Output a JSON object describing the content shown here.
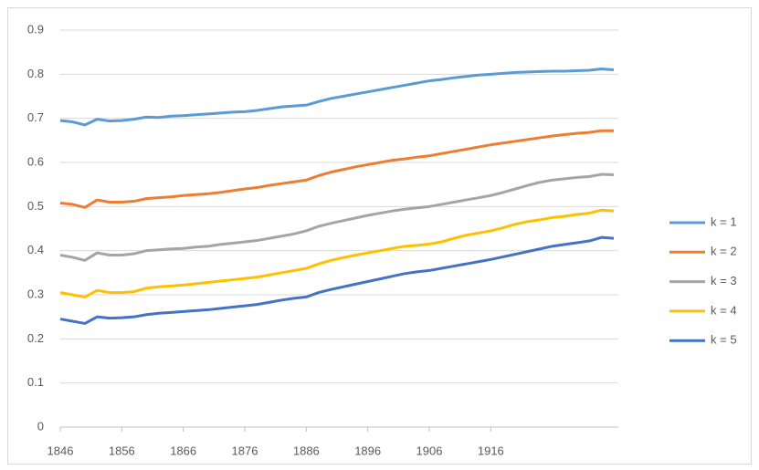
{
  "chart_data": {
    "type": "line",
    "x": [
      1846,
      1848,
      1850,
      1852,
      1854,
      1856,
      1858,
      1860,
      1862,
      1864,
      1866,
      1868,
      1870,
      1872,
      1874,
      1876,
      1878,
      1880,
      1882,
      1884,
      1886,
      1888,
      1890,
      1892,
      1894,
      1896,
      1898,
      1900,
      1902,
      1904,
      1906,
      1908,
      1910,
      1912,
      1914,
      1916,
      1918,
      1920,
      1922,
      1924,
      1926,
      1928,
      1930,
      1932,
      1934,
      1936
    ],
    "series": [
      {
        "name": "k = 1",
        "color": "#5b9bd5",
        "values": [
          0.695,
          0.692,
          0.685,
          0.698,
          0.694,
          0.695,
          0.698,
          0.703,
          0.702,
          0.705,
          0.706,
          0.708,
          0.71,
          0.712,
          0.714,
          0.715,
          0.718,
          0.722,
          0.726,
          0.728,
          0.73,
          0.738,
          0.745,
          0.75,
          0.755,
          0.76,
          0.765,
          0.77,
          0.775,
          0.78,
          0.785,
          0.788,
          0.792,
          0.795,
          0.798,
          0.8,
          0.802,
          0.804,
          0.805,
          0.806,
          0.807,
          0.807,
          0.808,
          0.809,
          0.812,
          0.81
        ]
      },
      {
        "name": "k = 2",
        "color": "#ed7d31",
        "values": [
          0.508,
          0.505,
          0.498,
          0.515,
          0.51,
          0.51,
          0.512,
          0.518,
          0.52,
          0.522,
          0.525,
          0.527,
          0.529,
          0.532,
          0.536,
          0.54,
          0.543,
          0.548,
          0.552,
          0.556,
          0.56,
          0.57,
          0.578,
          0.584,
          0.59,
          0.595,
          0.6,
          0.605,
          0.608,
          0.612,
          0.615,
          0.62,
          0.625,
          0.63,
          0.635,
          0.64,
          0.644,
          0.648,
          0.652,
          0.656,
          0.66,
          0.663,
          0.666,
          0.668,
          0.672,
          0.672
        ]
      },
      {
        "name": "k = 3",
        "color": "#a5a5a5",
        "values": [
          0.39,
          0.385,
          0.378,
          0.395,
          0.39,
          0.39,
          0.393,
          0.4,
          0.402,
          0.404,
          0.405,
          0.408,
          0.41,
          0.414,
          0.417,
          0.42,
          0.423,
          0.428,
          0.433,
          0.438,
          0.445,
          0.455,
          0.462,
          0.468,
          0.474,
          0.48,
          0.485,
          0.49,
          0.494,
          0.497,
          0.5,
          0.505,
          0.51,
          0.515,
          0.52,
          0.525,
          0.532,
          0.54,
          0.548,
          0.555,
          0.56,
          0.563,
          0.566,
          0.568,
          0.573,
          0.572
        ]
      },
      {
        "name": "k = 4",
        "color": "#ffc000",
        "values": [
          0.305,
          0.3,
          0.295,
          0.31,
          0.305,
          0.305,
          0.307,
          0.315,
          0.318,
          0.32,
          0.322,
          0.325,
          0.328,
          0.331,
          0.334,
          0.337,
          0.34,
          0.345,
          0.35,
          0.355,
          0.36,
          0.37,
          0.378,
          0.384,
          0.39,
          0.395,
          0.4,
          0.405,
          0.41,
          0.412,
          0.415,
          0.42,
          0.428,
          0.435,
          0.44,
          0.445,
          0.452,
          0.46,
          0.466,
          0.47,
          0.475,
          0.478,
          0.482,
          0.485,
          0.492,
          0.49
        ]
      },
      {
        "name": "k = 5",
        "color": "#4472c4",
        "values": [
          0.245,
          0.24,
          0.235,
          0.25,
          0.247,
          0.248,
          0.25,
          0.255,
          0.258,
          0.26,
          0.262,
          0.264,
          0.266,
          0.269,
          0.272,
          0.275,
          0.278,
          0.283,
          0.288,
          0.292,
          0.295,
          0.305,
          0.312,
          0.318,
          0.324,
          0.33,
          0.336,
          0.342,
          0.348,
          0.352,
          0.355,
          0.36,
          0.365,
          0.37,
          0.375,
          0.38,
          0.386,
          0.392,
          0.398,
          0.404,
          0.41,
          0.414,
          0.418,
          0.422,
          0.43,
          0.428
        ]
      }
    ],
    "xlim": [
      1846,
      1936
    ],
    "xticks": [
      1846,
      1856,
      1866,
      1876,
      1886,
      1896,
      1906,
      1916
    ],
    "ylim": [
      0,
      0.9
    ],
    "yticks": [
      0,
      0.1,
      0.2,
      0.3,
      0.4,
      0.5,
      0.6,
      0.7,
      0.8,
      0.9
    ],
    "grid": true,
    "legend": "right"
  }
}
